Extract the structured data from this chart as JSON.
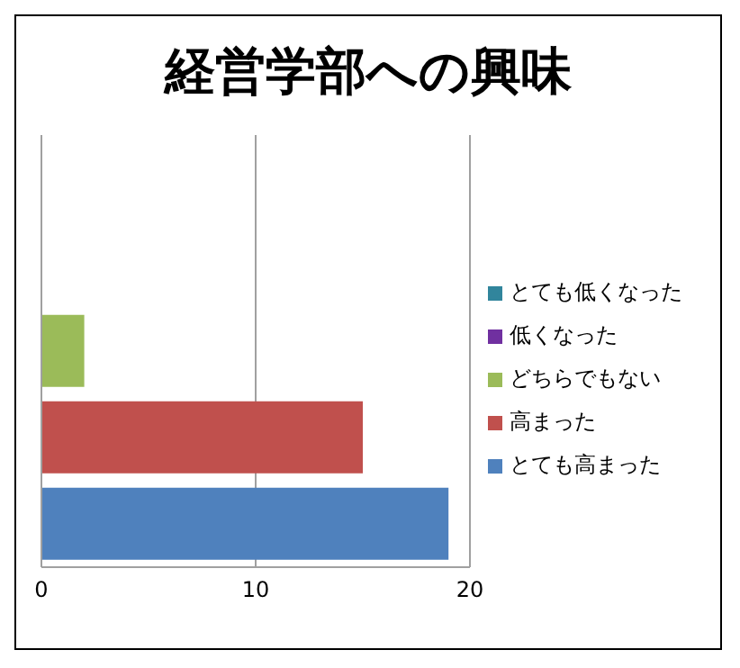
{
  "chart_data": {
    "type": "bar",
    "orientation": "horizontal",
    "title": "経営学部への興味",
    "categories": [
      null,
      null,
      null,
      null,
      null
    ],
    "series": [
      {
        "name": "とても低くなった",
        "color": "#31859c",
        "values": [
          0,
          null,
          null,
          null,
          null
        ]
      },
      {
        "name": "低くなった",
        "color": "#7030a0",
        "values": [
          null,
          0,
          null,
          null,
          null
        ]
      },
      {
        "name": "どちらでもない",
        "color": "#9bbb59",
        "values": [
          null,
          null,
          2,
          null,
          null
        ]
      },
      {
        "name": "高まった",
        "color": "#c0504d",
        "values": [
          null,
          null,
          null,
          15,
          null
        ]
      },
      {
        "name": "とても高まった",
        "color": "#4f81bd",
        "values": [
          null,
          null,
          null,
          null,
          19
        ]
      }
    ],
    "xlim": [
      0,
      20
    ],
    "xticks": [
      0,
      10,
      20
    ],
    "grid": "x",
    "legend": "right",
    "tick_labels": "x"
  }
}
